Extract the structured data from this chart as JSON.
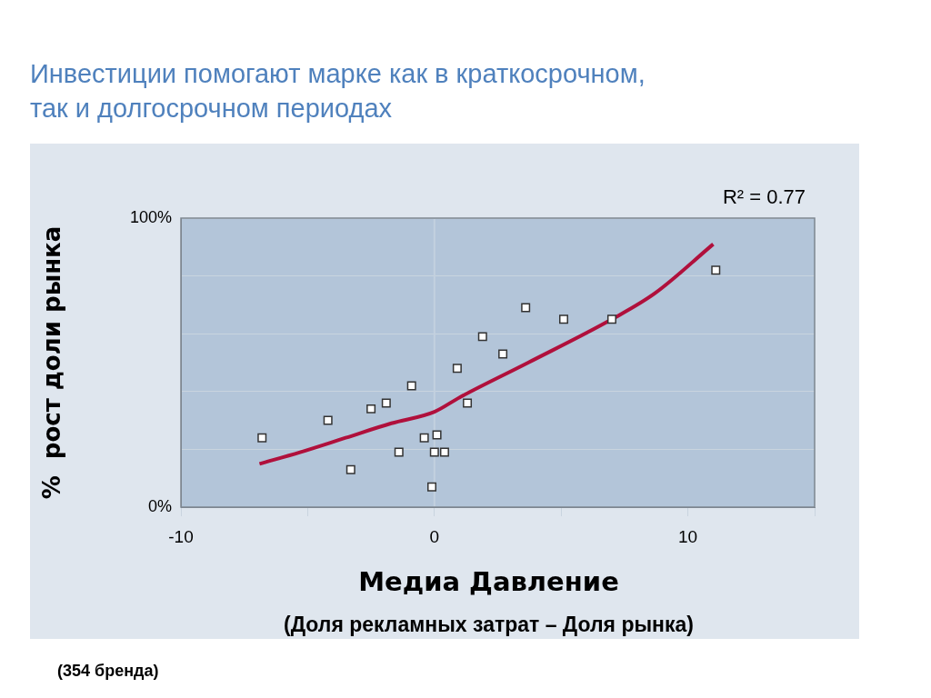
{
  "chart_data": {
    "type": "scatter",
    "title": "Инвестиции помогают марке как в краткосрочном,\nтак и долгосрочном периодах",
    "xlabel": "Медиа Давление",
    "ylabel": "%  рост доли рынка",
    "xlim": [
      -10,
      15
    ],
    "xticks": [
      -10,
      {
        "value": -5,
        "label": null
      },
      0,
      {
        "value": 5,
        "label": null
      },
      10,
      {
        "value": 15,
        "label": null
      }
    ],
    "ylim": [
      0,
      100
    ],
    "yticks": [
      {
        "value": 0,
        "label": "0%"
      },
      {
        "value": 20,
        "label": null
      },
      {
        "value": 40,
        "label": null
      },
      {
        "value": 60,
        "label": null
      },
      {
        "value": 80,
        "label": null
      },
      {
        "value": 100,
        "label": "100%"
      }
    ],
    "grid": "y",
    "legend": false,
    "marker": "square",
    "ref_lines": [
      {
        "axis": "x",
        "value": 0,
        "color": "#c3d1df"
      }
    ],
    "series": [
      {
        "color": "#ffffff",
        "x": [
          -6.8,
          -4.2,
          -3.3,
          -2.5,
          -1.9,
          -1.4,
          -0.9,
          -0.4,
          -0.1,
          0.0,
          0.1,
          0.4,
          0.9,
          1.3,
          1.9,
          2.7,
          3.6,
          5.1,
          7.0,
          11.1
        ],
        "values": [
          24,
          30,
          13,
          34,
          36,
          19,
          42,
          24,
          7,
          19,
          25,
          19,
          48,
          36,
          59,
          53,
          69,
          65,
          65,
          82
        ]
      },
      {
        "type": "line",
        "color": "#b0103c",
        "marker": "none",
        "x": [
          -6.9,
          -5.3,
          -3.5,
          -1.7,
          0,
          1.0,
          3.7,
          7.0,
          8.7,
          11.0
        ],
        "values": [
          15,
          19,
          24,
          29,
          33,
          38,
          50,
          65,
          74,
          91
        ]
      }
    ],
    "annotations": [
      "R² = 0.77",
      "(Доля рекламных затрат – Доля рынка)",
      "(354 бренда)"
    ]
  }
}
